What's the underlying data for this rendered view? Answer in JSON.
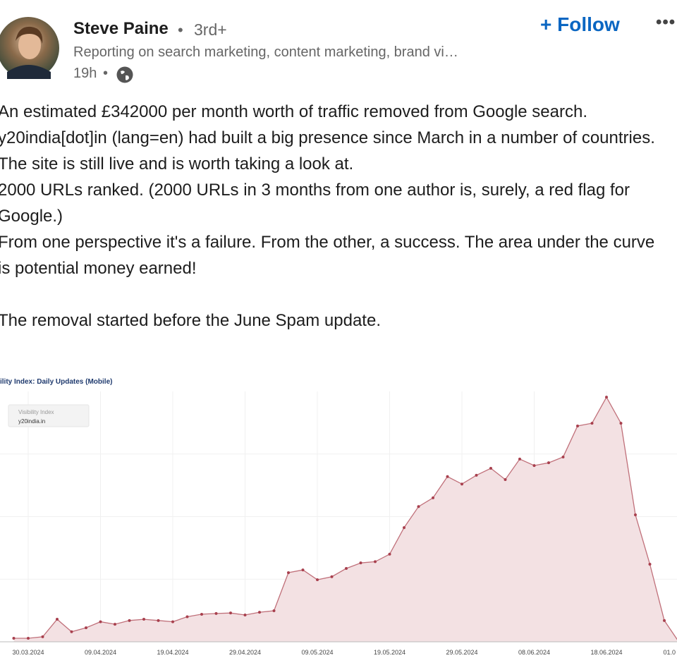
{
  "post": {
    "author": "Steve Paine",
    "degree": "3rd+",
    "headline": "Reporting on search marketing, content marketing, brand vi…",
    "time": "19h",
    "follow": "Follow",
    "paragraphs": [
      "An estimated £342000 per month worth of traffic removed from Google search.",
      "y20india[dot]in (lang=en) had built a big presence since March in a number of countries. The site is still live and is worth taking a look at.",
      "2000 URLs ranked. (2000 URLs in 3 months from one author is, surely, a red flag for Google.)",
      "From one perspective it's a failure. From the other, a success. The area under the curve is potential money earned!",
      "The removal started before the June Spam update."
    ]
  },
  "chart_data": {
    "type": "area",
    "title": "ility Index: Daily Updates (Mobile)",
    "legend_title": "Visibility Index",
    "series": [
      {
        "name": "y20india.in",
        "color": "#c0707a",
        "values": [
          1.4,
          1.4,
          2,
          9,
          4,
          5.6,
          8,
          7,
          8.5,
          9,
          8.5,
          8,
          10,
          11,
          11.3,
          11.5,
          10.7,
          11.8,
          12.4,
          27.6,
          28.7,
          24.8,
          26,
          29.3,
          31.5,
          32,
          35,
          45.6,
          54,
          57.5,
          66,
          63,
          66.5,
          69.3,
          64.8,
          73,
          70.4,
          71.5,
          73.8,
          86.2,
          87.3,
          97.7,
          87.3,
          50.7,
          31,
          8.5,
          0
        ]
      }
    ],
    "categories": [
      null,
      "30.03.2024",
      null,
      null,
      null,
      null,
      "09.04.2024",
      null,
      null,
      null,
      null,
      "19.04.2024",
      null,
      null,
      null,
      null,
      "29.04.2024",
      null,
      null,
      null,
      null,
      "09.05.2024",
      null,
      null,
      null,
      null,
      "19.05.2024",
      null,
      null,
      null,
      null,
      "29.05.2024",
      null,
      null,
      null,
      null,
      "08.06.2024",
      null,
      null,
      null,
      null,
      "18.06.2024",
      null,
      null,
      null,
      null,
      "01.0"
    ],
    "ylim": [
      0,
      100
    ]
  }
}
